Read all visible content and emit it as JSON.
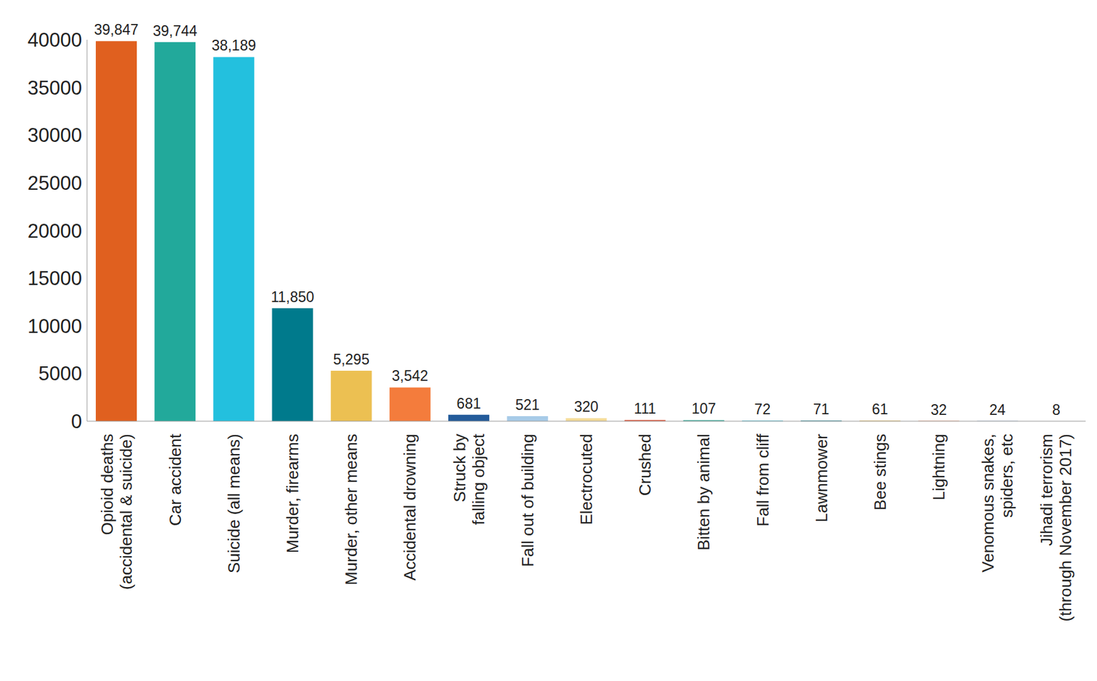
{
  "chart_data": {
    "type": "bar",
    "categories": [
      "Opioid deaths\n(accidental & suicide)",
      "Car accident",
      "Suicide (all means)",
      "Murder, firearms",
      "Murder, other means",
      "Accidental drowning",
      "Struck by\nfalling object",
      "Fall out of building",
      "Electrocuted",
      "Crushed",
      "Bitten by animal",
      "Fall from cliff",
      "Lawnmower",
      "Bee stings",
      "Lightning",
      "Venomous snakes,\nspiders, etc",
      "Jihadi terrorism\n(through November 2017)"
    ],
    "values": [
      39847,
      39744,
      38189,
      11850,
      5295,
      3542,
      681,
      521,
      320,
      111,
      107,
      72,
      71,
      61,
      32,
      24,
      8
    ],
    "value_labels": [
      "39,847",
      "39,744",
      "38,189",
      "11,850",
      "5,295",
      "3,542",
      "681",
      "521",
      "320",
      "111",
      "107",
      "72",
      "71",
      "61",
      "32",
      "24",
      "8"
    ],
    "colors": [
      "#e0601f",
      "#22a99b",
      "#23c0de",
      "#007a8c",
      "#ecc052",
      "#f47c3c",
      "#235b9a",
      "#a7cbe8",
      "#f5dc98",
      "#d9472b",
      "#1a9e8a",
      "#44c0d8",
      "#0b7b8a",
      "#e8c060",
      "#f07f45",
      "#2a5f9e",
      "#a8cbe8"
    ],
    "ylim": [
      0,
      40000
    ],
    "yticks": [
      0,
      5000,
      10000,
      15000,
      20000,
      25000,
      30000,
      35000,
      40000
    ],
    "grid": false,
    "data_labels": true
  }
}
